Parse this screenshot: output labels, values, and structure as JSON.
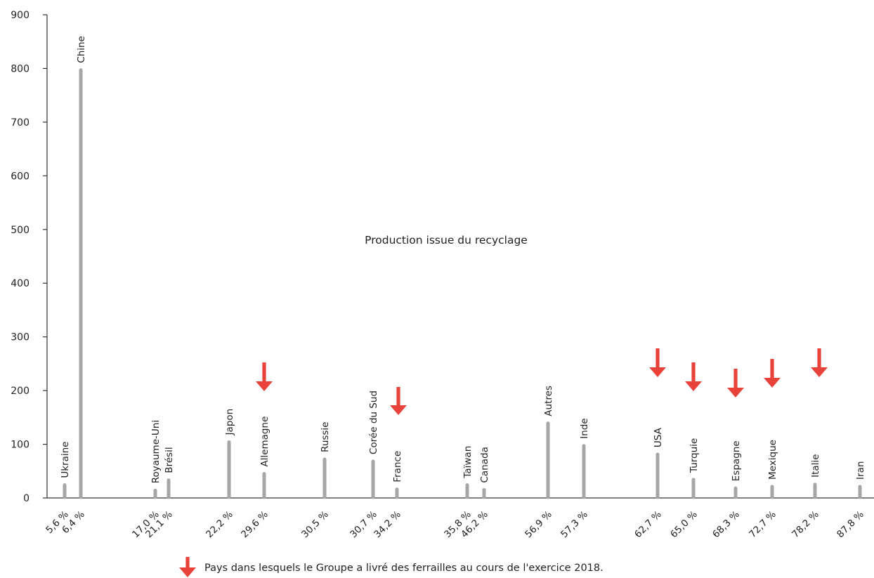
{
  "chart_data": {
    "type": "bar",
    "title": "",
    "xlabel": "",
    "ylabel": "",
    "ylim": [
      0,
      900
    ],
    "yticks": [
      0,
      100,
      200,
      300,
      400,
      500,
      600,
      700,
      800,
      900
    ],
    "categories": [
      "Ukraine",
      "Chine",
      "Royaume-Uni",
      "Brésil",
      "Japon",
      "Allemagne",
      "Russie",
      "Corée du Sud",
      "France",
      "Taïwan",
      "Canada",
      "Autres",
      "Inde",
      "USA",
      "Turquie",
      "Espagne",
      "Mexique",
      "Italie",
      "Iran"
    ],
    "recycling_share": [
      "5,6 %",
      "6,4 %",
      "17,0 %",
      "21,1 %",
      "22,2 %",
      "29,6 %",
      "30,5 %",
      "30,7 %",
      "34,2 %",
      "35,8 %",
      "46,2 %",
      "56,9 %",
      "57,3 %",
      "62,7 %",
      "65,0 %",
      "68,3 %",
      "72,7 %",
      "78,2 %",
      "87,8 %"
    ],
    "values": [
      24,
      797,
      14,
      33,
      104,
      45,
      72,
      68,
      16,
      24,
      15,
      139,
      97,
      81,
      34,
      18,
      21,
      25,
      21
    ],
    "x_share": [
      5.6,
      6.4,
      17.0,
      21.1,
      22.2,
      29.6,
      30.5,
      30.7,
      34.2,
      35.8,
      46.2,
      56.9,
      57.3,
      62.7,
      65.0,
      68.3,
      72.7,
      78.2,
      87.8
    ],
    "delivered": [
      "Allemagne",
      "France",
      "USA",
      "Turquie",
      "Espagne",
      "Mexique",
      "Italie"
    ],
    "annotation": "Production issue du recyclage",
    "legend": "Pays dans lesquels le Groupe a livré des ferrailles au cours de l'exercice 2018.",
    "colors": {
      "bar": "#a6a6a6",
      "arrow": "#e8423a",
      "axis": "#333333"
    },
    "grid": false
  }
}
